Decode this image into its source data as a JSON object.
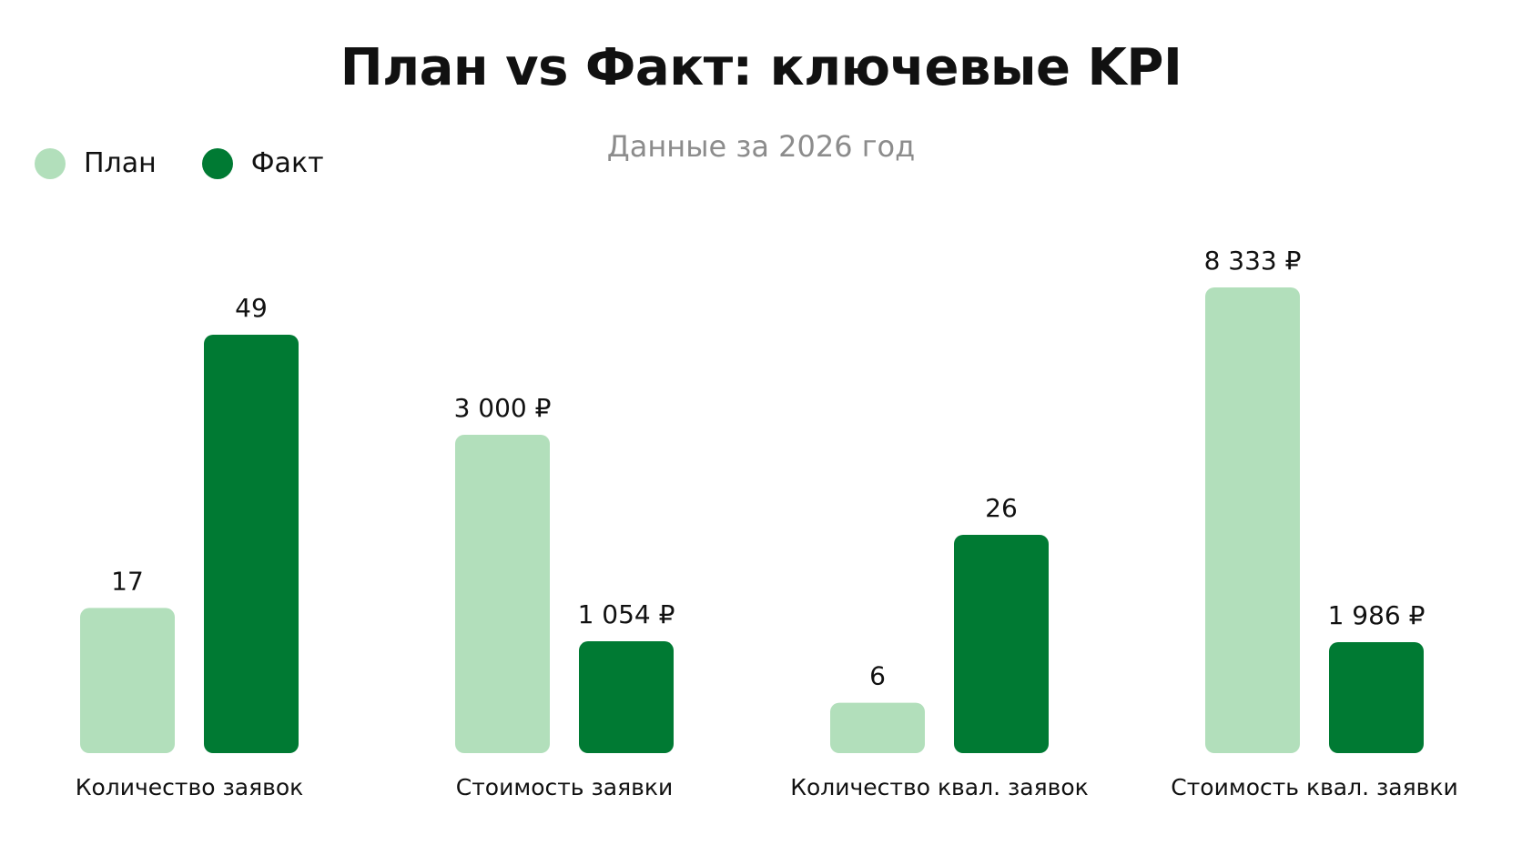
{
  "chart_data": {
    "type": "bar",
    "title": "План vs Факт: ключевые KPI",
    "subtitle": "Данные за 2026 год",
    "legend_position": "top-left",
    "grid": false,
    "categories": [
      "Количество заявок",
      "Стоимость заявки",
      "Количество квал. заявок",
      "Стоимость квал. заявки"
    ],
    "series": [
      {
        "name": "План",
        "color": "#b2dfbb",
        "values": [
          17,
          3000,
          6,
          8333
        ],
        "labels": [
          "17",
          "3 000 ₽",
          "6",
          "8 333 ₽"
        ]
      },
      {
        "name": "Факт",
        "color": "#007a33",
        "values": [
          49,
          1054,
          26,
          1986
        ],
        "labels": [
          "49",
          "1 054 ₽",
          "26",
          "1 986 ₽"
        ]
      }
    ]
  }
}
